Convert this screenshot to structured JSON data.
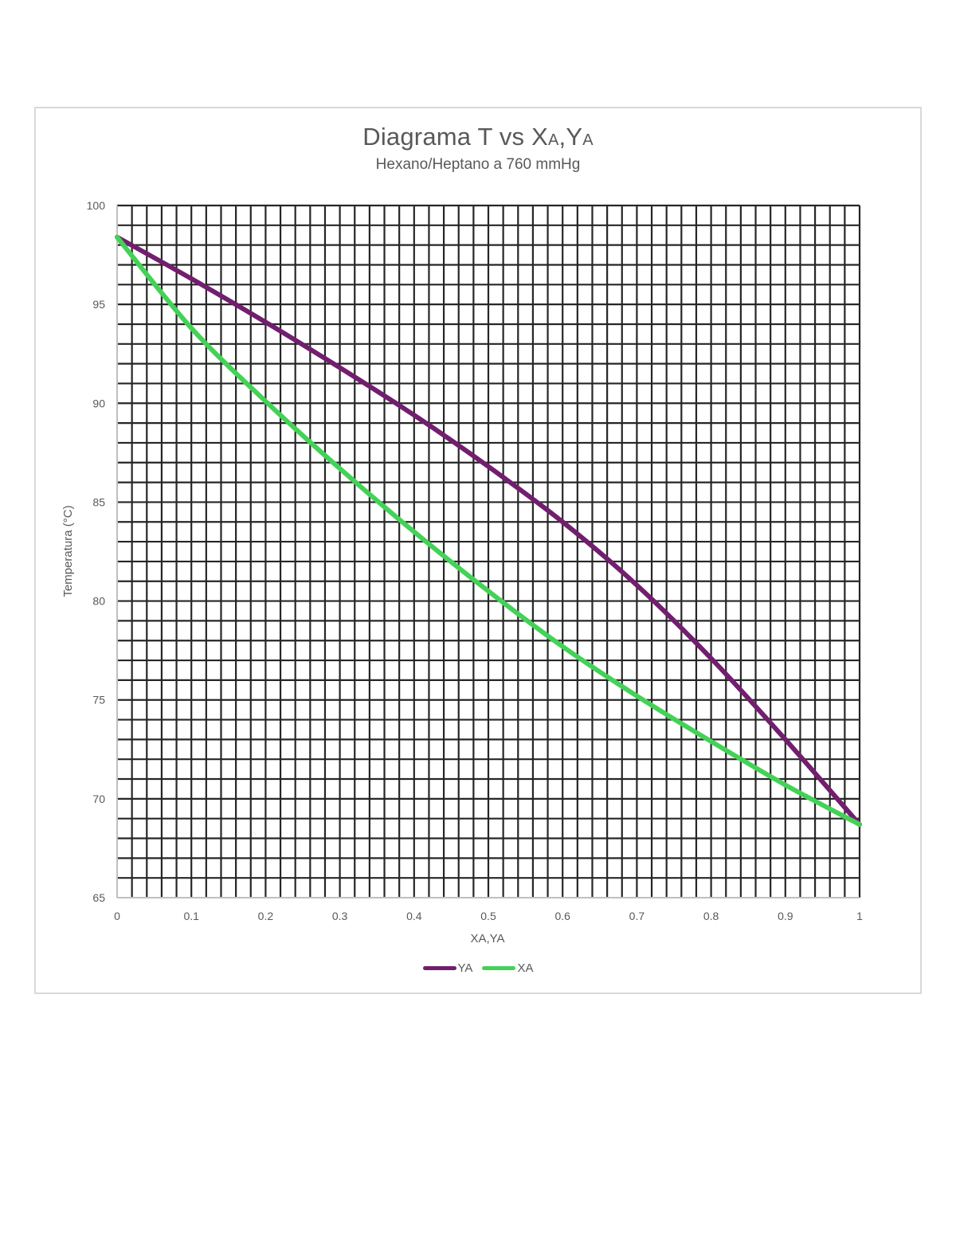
{
  "title": {
    "main": "Diagrama T vs X",
    "sub_a": "A",
    "sep": ",Y",
    "sub_b": "A",
    "subtitle": "Hexano/Heptano a 760 mmHg"
  },
  "legend": [
    {
      "label": "YA",
      "color": "#721e6e"
    },
    {
      "label": "XA",
      "color": "#44d157"
    }
  ],
  "chart_data": {
    "type": "line",
    "title": "Diagrama T vs XA,YA",
    "subtitle": "Hexano/Heptano a 760 mmHg",
    "xlabel": "XA,YA",
    "ylabel": "Temperatura (°C)",
    "xlim": [
      0,
      1
    ],
    "ylim": [
      65,
      100
    ],
    "x_ticks": [
      "0",
      "0.1",
      "0.2",
      "0.3",
      "0.4",
      "0.5",
      "0.6",
      "0.7",
      "0.8",
      "0.9",
      "1"
    ],
    "y_ticks": [
      "65",
      "70",
      "75",
      "80",
      "85",
      "90",
      "95",
      "100"
    ],
    "grid": {
      "on": true,
      "x_minor_step": 0.02,
      "y_minor_step": 1,
      "color": "#262626"
    },
    "legend_position": "bottom",
    "x": [
      0,
      0.1,
      0.2,
      0.3,
      0.4,
      0.5,
      0.6,
      0.7,
      0.8,
      0.9,
      1.0
    ],
    "series": [
      {
        "name": "YA",
        "color": "#721e6e",
        "values": [
          98.4,
          96.3,
          94.1,
          91.8,
          89.4,
          86.8,
          84.0,
          80.8,
          77.1,
          73.0,
          68.7
        ]
      },
      {
        "name": "XA",
        "color": "#44d157",
        "values": [
          98.4,
          93.8,
          90.1,
          86.7,
          83.5,
          80.5,
          77.7,
          75.2,
          72.9,
          70.7,
          68.7
        ]
      }
    ]
  }
}
